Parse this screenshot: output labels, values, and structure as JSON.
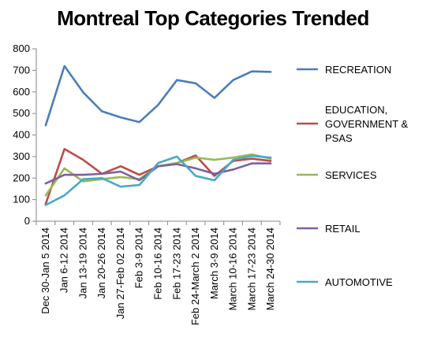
{
  "chart_data": {
    "type": "line",
    "title": "Montreal Top Categories Trended",
    "xlabel": "",
    "ylabel": "",
    "ylim": [
      0,
      800
    ],
    "yticks": [
      "0",
      "100",
      "200",
      "300",
      "400",
      "500",
      "600",
      "700",
      "800"
    ],
    "grid": false,
    "legend_position": "right",
    "categories": [
      "Dec 30-Jan 5 2014",
      "Jan 6-12 2014",
      "Jan 13-19 2014",
      "Jan 20-26 2014",
      "Jan 27-Feb 02 2014",
      "Feb 3-9 2014",
      "Feb 10-16 2014",
      "Feb 17-23 2014",
      "Feb 24-March 2 2014",
      "March 3-9 2014",
      "March 10-16 2014",
      "March 17-23 2014",
      "March 24-30 2014"
    ],
    "series": [
      {
        "name": "RECREATION",
        "color": "#4a7ebb",
        "values": [
          445,
          720,
          598,
          510,
          482,
          460,
          540,
          655,
          640,
          572,
          655,
          695,
          693
        ]
      },
      {
        "name": "EDUCATION, GOVERNMENT & PSAS",
        "color": "#be4b48",
        "values": [
          80,
          335,
          285,
          220,
          255,
          215,
          255,
          270,
          305,
          210,
          280,
          290,
          280
        ]
      },
      {
        "name": "SERVICES",
        "color": "#98b954",
        "values": [
          120,
          245,
          185,
          195,
          205,
          195,
          255,
          270,
          295,
          285,
          295,
          310,
          290
        ]
      },
      {
        "name": "RETAIL",
        "color": "#7d60a0",
        "values": [
          175,
          215,
          215,
          220,
          230,
          190,
          255,
          265,
          245,
          220,
          240,
          268,
          268
        ]
      },
      {
        "name": "AUTOMOTIVE",
        "color": "#46aac5",
        "values": [
          75,
          120,
          195,
          200,
          160,
          168,
          270,
          300,
          210,
          190,
          285,
          303,
          295
        ]
      }
    ]
  },
  "legend": [
    {
      "lines": [
        "RECREATION"
      ]
    },
    {
      "lines": [
        "EDUCATION,",
        "GOVERNMENT &",
        "PSAS"
      ]
    },
    {
      "lines": [
        "SERVICES"
      ]
    },
    {
      "lines": [
        "RETAIL"
      ]
    },
    {
      "lines": [
        "AUTOMOTIVE"
      ]
    }
  ]
}
